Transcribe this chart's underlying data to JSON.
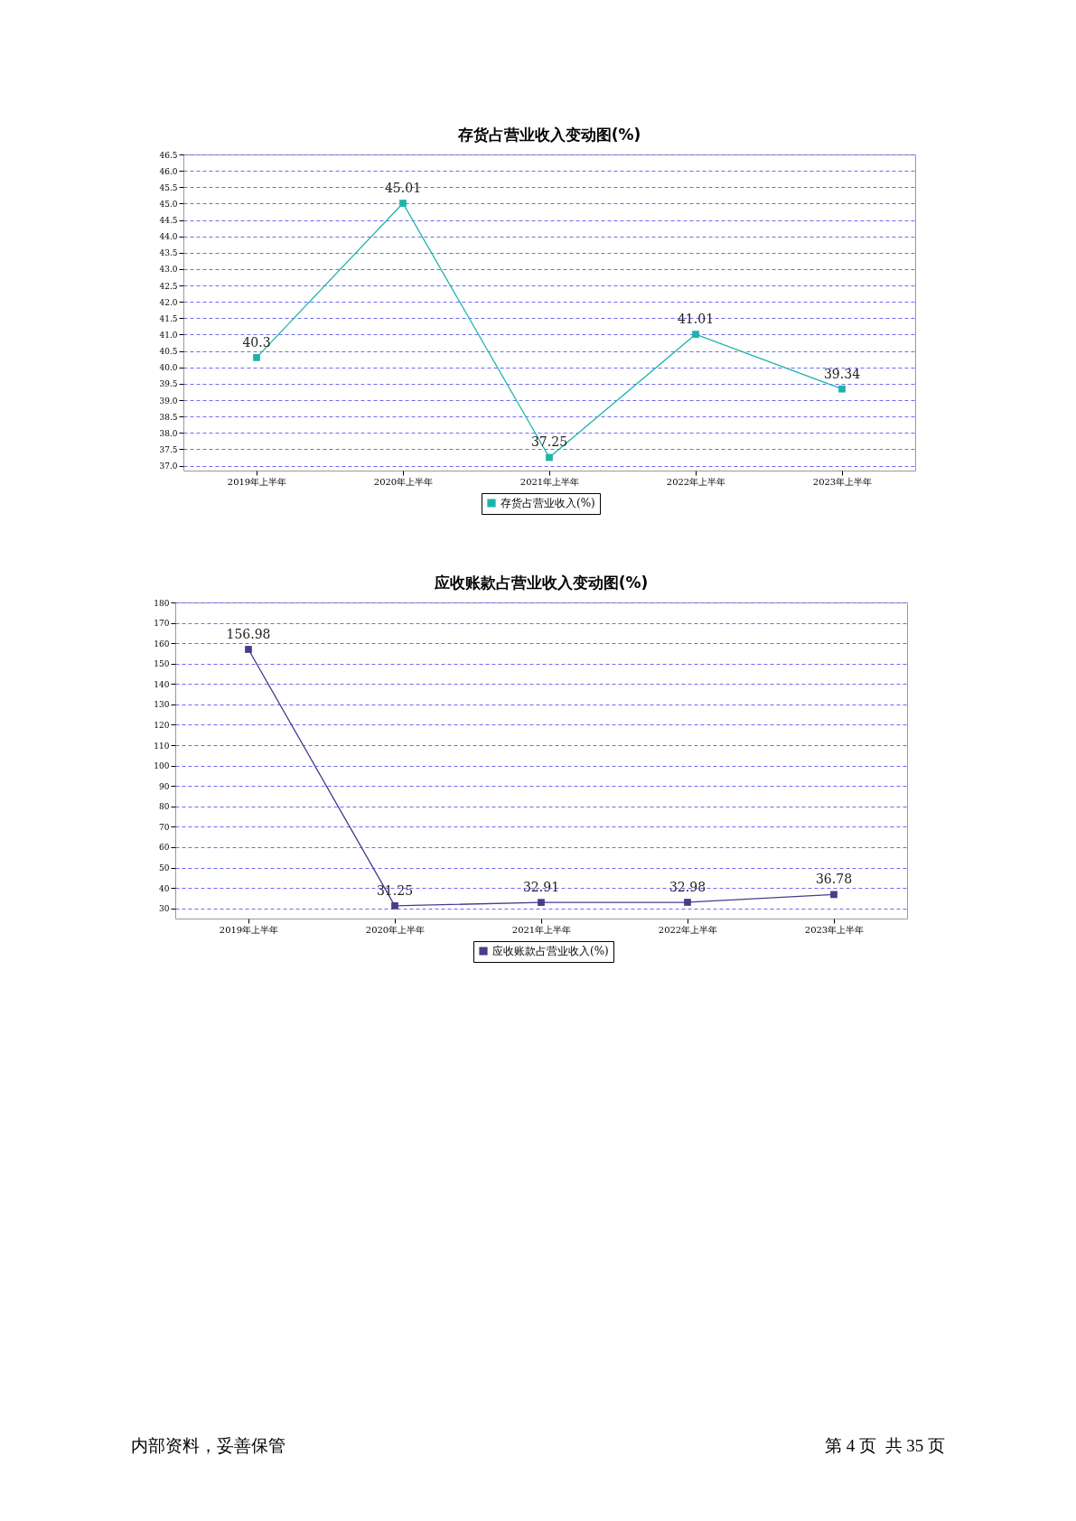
{
  "chart_data": [
    {
      "type": "line",
      "title": "存货占营业收入变动图(%)",
      "categories": [
        "2019年上半年",
        "2020年上半年",
        "2021年上半年",
        "2022年上半年",
        "2023年上半年"
      ],
      "series": [
        {
          "name": "存货占营业收入(%)",
          "color": "#20b2aa",
          "values": [
            40.3,
            45.01,
            37.25,
            41.01,
            39.34
          ]
        }
      ],
      "ylim": [
        36.85,
        46.5
      ],
      "yticks": [
        {
          "value": 37,
          "label": "37.0"
        },
        37.5,
        {
          "value": 38,
          "label": "38.0"
        },
        38.5,
        {
          "value": 39,
          "label": "39.0"
        },
        39.5,
        {
          "value": 40,
          "label": "40.0"
        },
        40.5,
        {
          "value": 41,
          "label": "41.0"
        },
        41.5,
        {
          "value": 42,
          "label": "42.0"
        },
        42.5,
        {
          "value": 43,
          "label": "43.0"
        },
        43.5,
        {
          "value": 44,
          "label": "44.0"
        },
        44.5,
        {
          "value": 45,
          "label": "45.0"
        },
        45.5,
        {
          "value": 46,
          "label": "46.0"
        },
        46.5
      ],
      "grid": "y",
      "legend": "bottom",
      "marker": "square",
      "line_style": "solid",
      "data_labels": true
    },
    {
      "type": "line",
      "title": "应收账款占营业收入变动图(%)",
      "categories": [
        "2019年上半年",
        "2020年上半年",
        "2021年上半年",
        "2022年上半年",
        "2023年上半年"
      ],
      "series": [
        {
          "name": "应收账款占营业收入(%)",
          "color": "#483d8b",
          "values": [
            156.98,
            31.25,
            32.91,
            32.98,
            36.78
          ]
        }
      ],
      "ylim": [
        25,
        180
      ],
      "yticks": [
        30,
        40,
        50,
        60,
        70,
        80,
        90,
        100,
        110,
        120,
        130,
        140,
        150,
        160,
        170,
        180
      ],
      "grid": "y",
      "legend": "bottom",
      "marker": "square",
      "line_style": "solid",
      "data_labels": true,
      "annotations": [
        "内部资料，妥善保管",
        "第 4 页  共 35 页"
      ]
    }
  ]
}
